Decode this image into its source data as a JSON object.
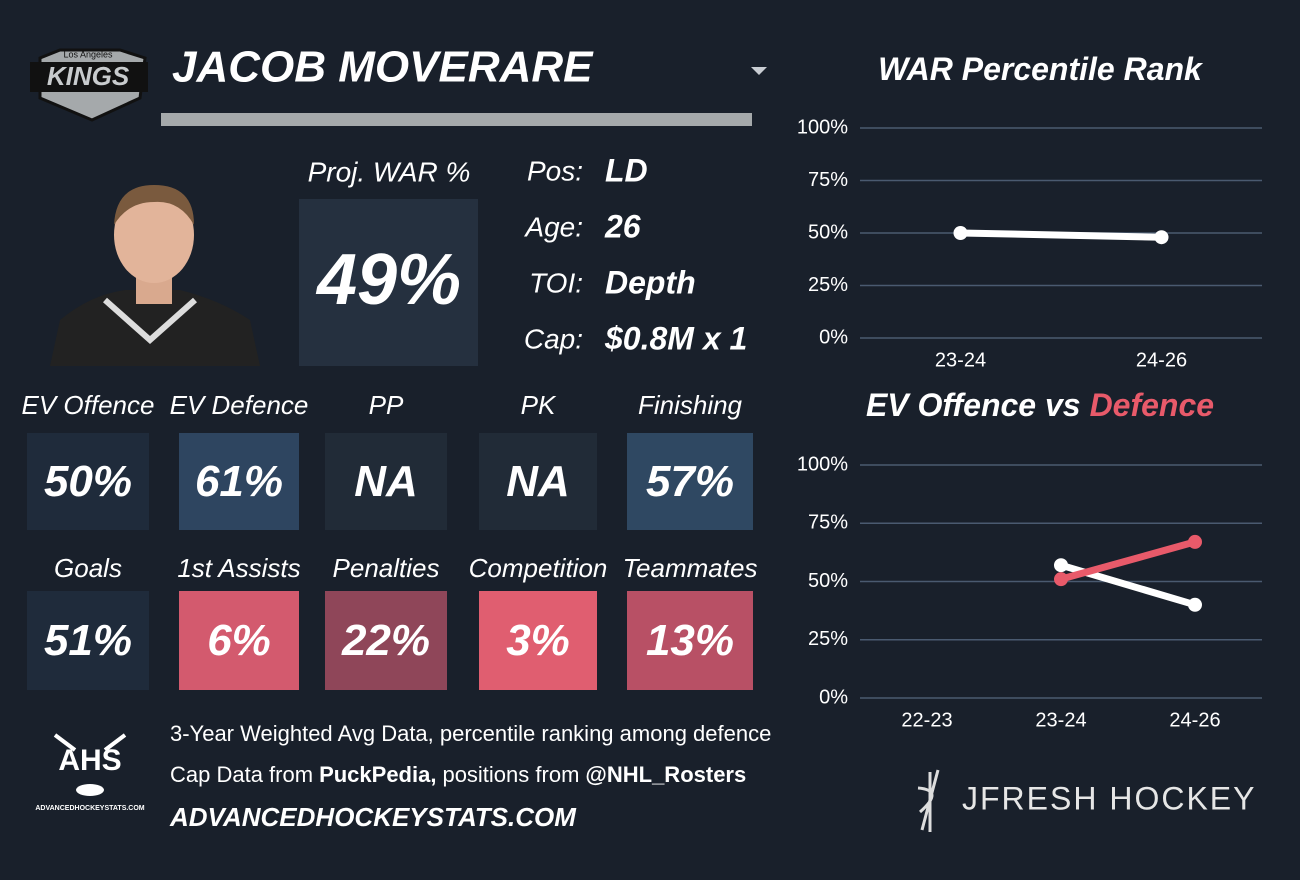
{
  "header": {
    "logo_subtext": "Los Angeles",
    "logo_text": "KINGS",
    "player_name": "JACOB MOVERARE"
  },
  "projection": {
    "label": "Proj. WAR %",
    "value": "49%",
    "color": "#25303f"
  },
  "info": [
    {
      "label": "Pos:",
      "value": "LD"
    },
    {
      "label": "Age:",
      "value": "26"
    },
    {
      "label": "TOI:",
      "value": "Depth"
    },
    {
      "label": "Cap:",
      "value": "$0.8M x 1"
    }
  ],
  "tiles": [
    [
      {
        "label": "EV Offence",
        "value": "50%",
        "color": "#1f2b3b"
      },
      {
        "label": "EV Defence",
        "value": "61%",
        "color": "#2e4560"
      },
      {
        "label": "PP",
        "value": "NA",
        "color": "#212b37"
      },
      {
        "label": "PK",
        "value": "NA",
        "color": "#212b37"
      },
      {
        "label": "Finishing",
        "value": "57%",
        "color": "#2f4862"
      }
    ],
    [
      {
        "label": "Goals",
        "value": "51%",
        "color": "#1f2b3b"
      },
      {
        "label": "1st Assists",
        "value": "6%",
        "color": "#d35a6e"
      },
      {
        "label": "Penalties",
        "value": "22%",
        "color": "#8f4659"
      },
      {
        "label": "Competition",
        "value": "3%",
        "color": "#e05e70"
      },
      {
        "label": "Teammates",
        "value": "13%",
        "color": "#b85065"
      }
    ]
  ],
  "footer": {
    "ahs_logo": "AHS",
    "ahs_url": "ADVANCEDHOCKEYSTATS.COM",
    "lines": [
      [
        {
          "text": "3-Year Weighted Avg Data, percentile ranking among defence",
          "bold": false
        }
      ],
      [
        {
          "text": "Cap Data from",
          "bold": false
        },
        {
          "text": "PuckPedia,",
          "bold": true
        },
        {
          "text": "positions from",
          "bold": false
        },
        {
          "text": "@NHL_Rosters",
          "bold": true
        }
      ],
      [
        {
          "text": "ADVANCEDHOCKEYSTATS.COM",
          "bold": true
        }
      ]
    ],
    "brand": "JFRESH HOCKEY"
  },
  "chart_data": [
    {
      "type": "line",
      "title": [
        {
          "text": "WAR Percentile Rank",
          "color": "#ffffff"
        }
      ],
      "categories": [
        "23-24",
        "24-26"
      ],
      "series": [
        {
          "color": "#ffffff",
          "values": [
            50,
            48
          ]
        }
      ],
      "ylim": [
        0,
        100
      ],
      "yticks": [
        {
          "value": 0,
          "label": "0%"
        },
        {
          "value": 25,
          "label": "25%"
        },
        {
          "value": 50,
          "label": "50%"
        },
        {
          "value": 75,
          "label": "75%"
        },
        {
          "value": 100,
          "label": "100%"
        }
      ],
      "grid": true
    },
    {
      "type": "line",
      "title": [
        {
          "text": "EV Offence vs",
          "color": "#ffffff"
        },
        {
          "text": "Defence",
          "color": "#e85a6a"
        }
      ],
      "categories": [
        "22-23",
        "23-24",
        "24-26"
      ],
      "series": [
        {
          "color": "#ffffff",
          "values": [
            null,
            57,
            40
          ]
        },
        {
          "color": "#e85a6a",
          "values": [
            null,
            51,
            67
          ]
        }
      ],
      "ylim": [
        0,
        100
      ],
      "yticks": [
        {
          "value": 0,
          "label": "0%"
        },
        {
          "value": 25,
          "label": "25%"
        },
        {
          "value": 50,
          "label": "50%"
        },
        {
          "value": 75,
          "label": "75%"
        },
        {
          "value": 100,
          "label": "100%"
        }
      ],
      "grid": true
    }
  ]
}
